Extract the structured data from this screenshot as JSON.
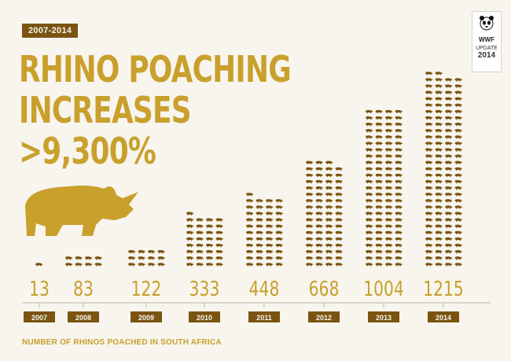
{
  "header": {
    "period_tag": "2007-2014",
    "title_line1": "RHINO POACHING",
    "title_line2": "INCREASES",
    "title_line3": ">9,300%"
  },
  "logo": {
    "org": "WWF",
    "update_label": "UPDATE",
    "update_year": "2014",
    "icon": "panda-icon"
  },
  "footer": {
    "caption": "NUMBER OF RHINOS POACHED IN SOUTH AFRICA"
  },
  "colors": {
    "gold": "#c9a02c",
    "brown": "#7a5410",
    "background": "#f7f5ee"
  },
  "chart_data": {
    "type": "bar",
    "categories": [
      "2007",
      "2008",
      "2009",
      "2010",
      "2011",
      "2012",
      "2013",
      "2014"
    ],
    "values": [
      13,
      83,
      122,
      333,
      448,
      668,
      1004,
      1215
    ],
    "value_labels": [
      "13",
      "83",
      "122",
      "333",
      "448",
      "668",
      "1004",
      "1215"
    ],
    "mark": "rhino-icon",
    "title": "",
    "xlabel": "",
    "ylabel": ""
  }
}
